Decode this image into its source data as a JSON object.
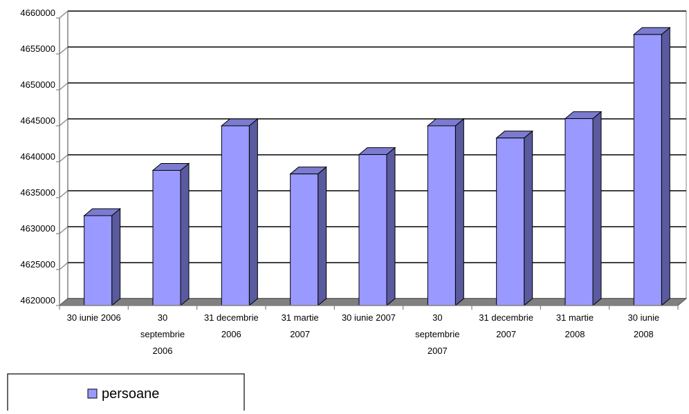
{
  "chart_data": {
    "type": "bar",
    "title": "",
    "xlabel": "",
    "ylabel": "",
    "categories": [
      [
        "30 iunie 2006"
      ],
      [
        "30",
        "septembrie",
        "2006"
      ],
      [
        "31 decembrie",
        "2006"
      ],
      [
        "31 martie",
        "2007"
      ],
      [
        "30 iunie 2007"
      ],
      [
        "30",
        "septembrie",
        "2007"
      ],
      [
        "31 decembrie",
        "2007"
      ],
      [
        "31 martie",
        "2008"
      ],
      [
        "30 iunie",
        "2008"
      ]
    ],
    "series": [
      {
        "name": "persoane",
        "values": [
          4632500,
          4638800,
          4645000,
          4638300,
          4641000,
          4645000,
          4643300,
          4646000,
          4657700
        ]
      }
    ],
    "ylim": [
      4620000,
      4660000
    ],
    "yticks": [
      4620000,
      4625000,
      4630000,
      4635000,
      4640000,
      4645000,
      4650000,
      4655000,
      4660000
    ],
    "ytick_labels": [
      "4620000",
      "4625000",
      "4630000",
      "4635000",
      "4640000",
      "4645000",
      "4650000",
      "4655000",
      "4660000"
    ],
    "grid": true,
    "legend_position": "bottom-left",
    "colors": {
      "bar_front": "#9999FF",
      "bar_side": "#5A5A9E",
      "bar_top": "#7B7BCF",
      "floor": "#808080",
      "gridline": "#000000",
      "axis": "#808080"
    }
  }
}
